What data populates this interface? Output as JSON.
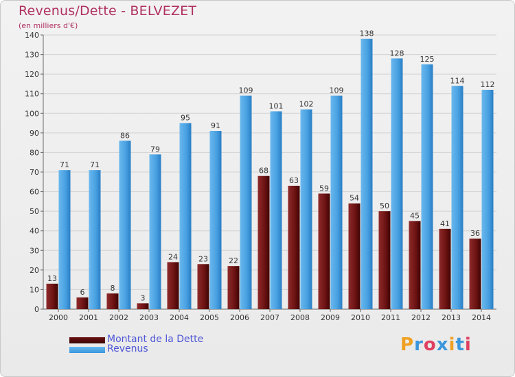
{
  "title": "Revenus/Dette - BELVEZET",
  "subtitle": "(en milliers d'€)",
  "colors": {
    "dette": "#7a1a1a",
    "revenus": "#3a96dc",
    "title": "#b03060",
    "legend_text": "#4d55d6"
  },
  "legend": [
    {
      "label": "Montant de la Dette",
      "color": "#6b1010"
    },
    {
      "label": "Revenus",
      "color": "#3a96dc"
    }
  ],
  "logo": {
    "letters": [
      "P",
      "r",
      "o",
      "x",
      "i",
      "t",
      "i"
    ],
    "colors": [
      "#f0a020",
      "#3a96dc",
      "#e04060",
      "#3a96dc",
      "#f0a020",
      "#3a96dc",
      "#e04060"
    ]
  },
  "chart_data": {
    "type": "bar",
    "categories": [
      "2000",
      "2001",
      "2002",
      "2003",
      "2004",
      "2005",
      "2006",
      "2007",
      "2008",
      "2009",
      "2010",
      "2011",
      "2012",
      "2013",
      "2014"
    ],
    "series": [
      {
        "name": "Montant de la Dette",
        "values": [
          13,
          6,
          8,
          3,
          24,
          23,
          22,
          68,
          63,
          59,
          54,
          50,
          45,
          41,
          36
        ]
      },
      {
        "name": "Revenus",
        "values": [
          71,
          71,
          86,
          79,
          95,
          91,
          109,
          101,
          102,
          109,
          138,
          128,
          125,
          114,
          112
        ]
      }
    ],
    "ylim": [
      0,
      140
    ],
    "yticks": [
      0,
      10,
      20,
      30,
      40,
      50,
      60,
      70,
      80,
      90,
      100,
      110,
      120,
      130,
      140
    ],
    "grid": true,
    "legend_position": "bottom-left"
  }
}
